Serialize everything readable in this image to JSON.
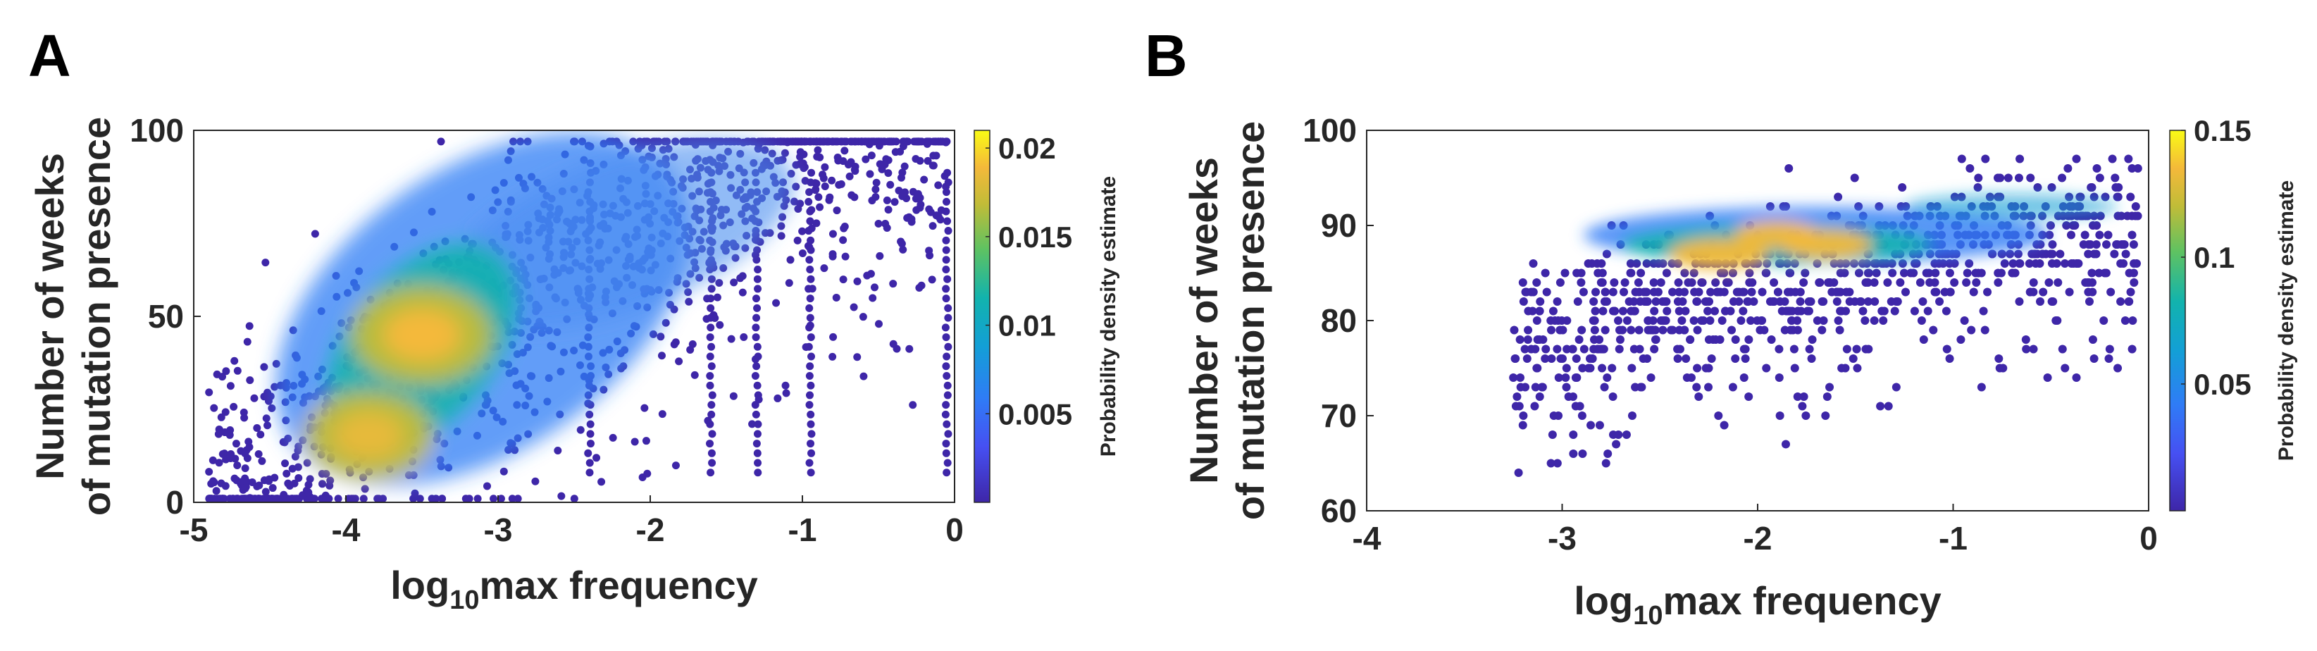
{
  "chart_data": [
    {
      "panel": "A",
      "type": "scatter",
      "subtype": "density-colored scatter",
      "xlabel_base": "log",
      "xlabel_sub": "10",
      "xlabel_rest": "max frequency",
      "ylabel_line1": "Number of weeks",
      "ylabel_line2": "of mutation presence",
      "xlim": [
        -5,
        0
      ],
      "ylim": [
        0,
        100
      ],
      "xticks": [
        -5,
        -4,
        -3,
        -2,
        -1,
        0
      ],
      "xtick_labels": [
        "-5",
        "-4",
        "-3",
        "-2",
        "-1",
        "0"
      ],
      "yticks": [
        0,
        50,
        100
      ],
      "ytick_labels": [
        "0",
        "50",
        "100"
      ],
      "colorbar": {
        "label": "Probability density estimate",
        "range": [
          0,
          0.021
        ],
        "ticks": [
          0.005,
          0.01,
          0.015,
          0.02
        ],
        "tick_labels": [
          "0.005",
          "0.01",
          "0.015",
          "0.02"
        ]
      },
      "density_peaks": [
        {
          "x": -3.5,
          "y": 45,
          "density": 0.021
        },
        {
          "x": -3.85,
          "y": 18,
          "density": 0.016
        }
      ]
    },
    {
      "panel": "B",
      "type": "scatter",
      "subtype": "density-colored scatter",
      "xlabel_base": "log",
      "xlabel_sub": "10",
      "xlabel_rest": "max frequency",
      "ylabel_line1": "Number of weeks",
      "ylabel_line2": "of mutation presence",
      "xlim": [
        -4,
        0
      ],
      "ylim": [
        60,
        100
      ],
      "xticks": [
        -4,
        -3,
        -2,
        -1,
        0
      ],
      "xtick_labels": [
        "-4",
        "-3",
        "-2",
        "-1",
        "0"
      ],
      "yticks": [
        60,
        70,
        80,
        90,
        100
      ],
      "ytick_labels": [
        "60",
        "70",
        "80",
        "90",
        "100"
      ],
      "colorbar": {
        "label": "Probability density estimate",
        "range": [
          0,
          0.15
        ],
        "ticks": [
          0.05,
          0.1,
          0.15
        ],
        "tick_labels": [
          "0.05",
          "0.1",
          "0.15"
        ]
      },
      "density_peaks": [
        {
          "x": -2.2,
          "y": 87,
          "density": 0.15
        },
        {
          "x": -1.65,
          "y": 88,
          "density": 0.14
        },
        {
          "x": -1.9,
          "y": 89,
          "density": 0.13
        }
      ]
    }
  ]
}
